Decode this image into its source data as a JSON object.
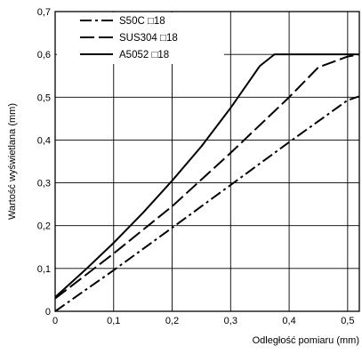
{
  "chart_data": {
    "type": "line",
    "title": "",
    "xlabel": "Odległość pomiaru (mm)",
    "ylabel": "Wartość wyświetlana (mm)",
    "xlim": [
      0,
      0.52
    ],
    "ylim": [
      0,
      0.7
    ],
    "x_ticks": [
      0,
      0.1,
      0.2,
      0.3,
      0.4,
      0.5
    ],
    "x_tick_labels": [
      "0",
      "0,1",
      "0,2",
      "0,3",
      "0,4",
      "0,5"
    ],
    "y_ticks": [
      0,
      0.1,
      0.2,
      0.3,
      0.4,
      0.5,
      0.6,
      0.7
    ],
    "y_tick_labels": [
      "0",
      "0,1",
      "0,2",
      "0,3",
      "0,4",
      "0,5",
      "0,6",
      "0,7"
    ],
    "grid": true,
    "legend": "top-left",
    "series": [
      {
        "name": "S50C □18",
        "dash": "dash-dot",
        "color": "#000000",
        "x": [
          0,
          0.1,
          0.2,
          0.3,
          0.4,
          0.5,
          0.52
        ],
        "y": [
          0.0,
          0.096,
          0.195,
          0.295,
          0.395,
          0.493,
          0.502
        ]
      },
      {
        "name": "SUS304 □18",
        "dash": "dashed",
        "color": "#000000",
        "x": [
          0,
          0.1,
          0.2,
          0.3,
          0.4,
          0.45,
          0.5,
          0.52
        ],
        "y": [
          0.03,
          0.135,
          0.245,
          0.37,
          0.5,
          0.57,
          0.595,
          0.6
        ]
      },
      {
        "name": "A5052 □18",
        "dash": "solid",
        "color": "#000000",
        "x": [
          0,
          0.05,
          0.1,
          0.15,
          0.2,
          0.25,
          0.3,
          0.35,
          0.375,
          0.52
        ],
        "y": [
          0.033,
          0.095,
          0.16,
          0.23,
          0.305,
          0.385,
          0.475,
          0.573,
          0.6,
          0.6
        ]
      }
    ]
  }
}
